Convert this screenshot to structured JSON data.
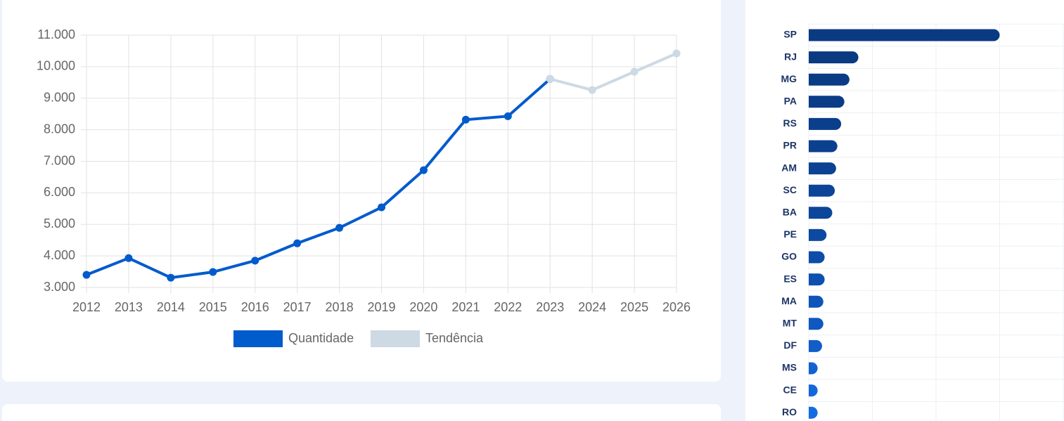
{
  "chart_data": [
    {
      "type": "line",
      "x": [
        2012,
        2013,
        2014,
        2015,
        2016,
        2017,
        2018,
        2019,
        2020,
        2021,
        2022,
        2023,
        2024,
        2025,
        2026
      ],
      "xlim": [
        2012,
        2026
      ],
      "ylim": [
        3000,
        11000
      ],
      "yticks": [
        {
          "value": 3000,
          "label": "3.000"
        },
        {
          "value": 4000,
          "label": "4.000"
        },
        {
          "value": 5000,
          "label": "5.000"
        },
        {
          "value": 6000,
          "label": "6.000"
        },
        {
          "value": 7000,
          "label": "7.000"
        },
        {
          "value": 8000,
          "label": "8.000"
        },
        {
          "value": 9000,
          "label": "9.000"
        },
        {
          "value": 10000,
          "label": "10.000"
        },
        {
          "value": 11000,
          "label": "11.000"
        }
      ],
      "grid": true,
      "legend": "bottom",
      "series": [
        {
          "name": "Quantidade",
          "color": "#005bcc",
          "values": [
            3400,
            3930,
            3310,
            3490,
            3850,
            4400,
            4890,
            5540,
            6720,
            8320,
            8430,
            9610,
            null,
            null,
            null
          ]
        },
        {
          "name": "Tendência",
          "color": "#cdd9e3",
          "values": [
            null,
            null,
            null,
            null,
            null,
            null,
            null,
            null,
            null,
            null,
            null,
            9610,
            9260,
            9840,
            10420
          ]
        }
      ]
    },
    {
      "type": "hbar",
      "categories": [
        "SP",
        "RJ",
        "MG",
        "PA",
        "RS",
        "PR",
        "AM",
        "SC",
        "BA",
        "PE",
        "GO",
        "ES",
        "MA",
        "MT",
        "DF",
        "MS",
        "CE",
        "RO"
      ],
      "values": [
        300,
        78,
        64,
        56,
        51,
        45,
        43,
        41,
        37,
        28,
        25,
        25,
        23,
        23,
        21,
        14,
        14,
        14
      ],
      "colors": [
        "#0a3a82",
        "#0a3a82",
        "#0a3b85",
        "#0a3c88",
        "#0b3e8b",
        "#0b408f",
        "#0b4293",
        "#0c4497",
        "#0c469b",
        "#0d49a1",
        "#0d4ca8",
        "#0e50b0",
        "#0f54b8",
        "#1058c0",
        "#115dc9",
        "#1262d3",
        "#1367dc",
        "#146ce4"
      ],
      "xlim": [
        0,
        400
      ],
      "grid": true
    }
  ]
}
